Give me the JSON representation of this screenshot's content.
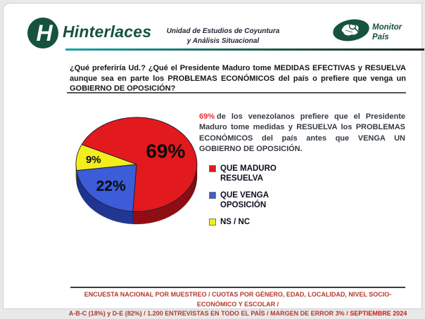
{
  "header": {
    "brand": "Hinterlaces",
    "brand_initial": "H",
    "unit_line1": "Unidad de Estudios de Coyuntura",
    "unit_line2": "y Análisis Situacional",
    "monitor_line1": "Monitor",
    "monitor_line2": "País"
  },
  "question": "¿Qué preferiría Ud.? ¿Qué el Presidente Maduro tome MEDIDAS EFECTIVAS y RESUELVA aunque sea en parte los PROBLEMAS ECONÓMICOS del país o prefiere que venga un GOBIERNO DE OPOSICIÓN?",
  "chart_data": {
    "type": "pie",
    "style": "3d",
    "title": "¿Qué preferiría Ud.? ¿Qué el Presidente Maduro tome MEDIDAS EFECTIVAS y RESUELVA aunque sea en parte los PROBLEMAS ECONÓMICOS del país o prefiere que venga un GOBIERNO DE OPOSICIÓN?",
    "labels": [
      "QUE MADURO RESUELVA",
      "QUE VENGA OPOSICIÓN",
      "NS / NC"
    ],
    "values": [
      69,
      22,
      9
    ],
    "unit": "%",
    "colors": [
      "#e2191d",
      "#3c5cd8",
      "#f2ed1c"
    ],
    "dark_colors": [
      "#9a0f13",
      "#223a9b",
      "#b2aa10"
    ],
    "slice_label_color": "#0a0a0a",
    "start_angle_cw_deg": 295,
    "legend_position": "right",
    "slice_labels": [
      "69%",
      "22%",
      "9%"
    ]
  },
  "summary": {
    "highlight": "69%",
    "rest": "de los venezolanos prefiere que el Presidente Maduro tome medidas y RESUELVA los PROBLEMAS ECONÓMICOS del país antes que VENGA UN GOBIERNO DE OPOSICIÓN."
  },
  "footer": {
    "line1": "ENCUESTA NACIONAL POR MUESTREO / CUOTAS POR GÉNERO, EDAD, LOCALIDAD, NIVEL SOCIO-ECONÓMICO Y ESCOLAR /",
    "line2_prefix": "A-B-C (18%)  y  D-E (82%) / 1.200  ENTREVISTAS EN TODO EL PAÍS /  MARGEN DE ERROR 3% / ",
    "line2_bold": "SEPTIEMBRE 2024"
  }
}
